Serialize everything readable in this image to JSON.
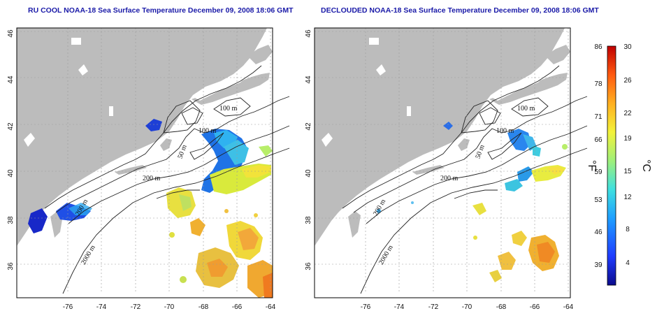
{
  "titles": {
    "left": "RU COOL NOAA-18 Sea Surface Temperature December 09, 2008 18:06 GMT",
    "right": "DECLOUDED NOAA-18 Sea Surface Temperature December 09, 2008 18:06 GMT"
  },
  "axes": {
    "lon_ticks": [
      "-76",
      "-74",
      "-72",
      "-70",
      "-68",
      "-66",
      "-64"
    ],
    "lat_ticks": [
      "46",
      "44",
      "42",
      "40",
      "38",
      "36"
    ]
  },
  "contour_labels": {
    "c100a": "100 m",
    "c100b": "100 m",
    "c50": "50 m",
    "c200": "200 m",
    "c200b": "200 m",
    "c2000": "2000 m"
  },
  "colorbar": {
    "f_ticks": [
      "86",
      "78",
      "71",
      "66",
      "59",
      "53",
      "46",
      "39"
    ],
    "c_ticks": [
      "30",
      "26",
      "22",
      "19",
      "15",
      "12",
      "8",
      "4"
    ],
    "f_unit": "°F",
    "c_unit": "°C",
    "colors": [
      "#0b0b8c",
      "#1f3cff",
      "#1f9fff",
      "#3fe0e0",
      "#9ff07a",
      "#f3f23a",
      "#ffb020",
      "#ff5a10",
      "#c00000"
    ]
  }
}
